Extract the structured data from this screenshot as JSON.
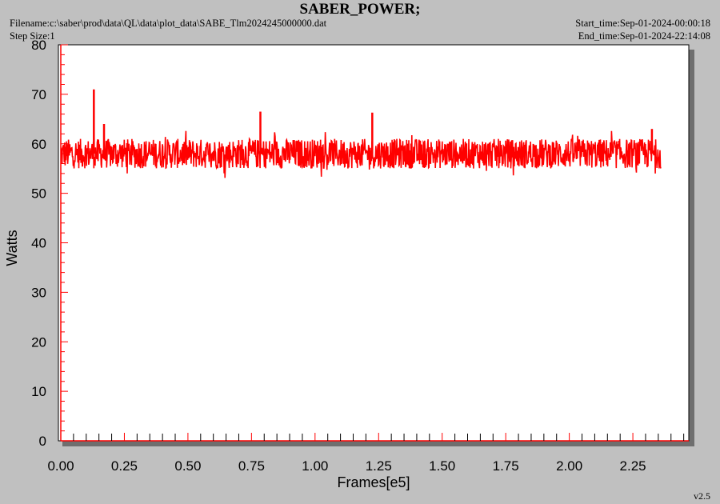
{
  "header": {
    "title": "SABER_POWER;",
    "filename": "Filename:c:\\saber\\prod\\data\\QL\\data\\plot_data\\SABE_Tlm2024245000000.dat",
    "step_size": "Step Size:1",
    "start_time": "Start_time:Sep-01-2024-00:00:18",
    "end_time": "End_time:Sep-01-2024-22:14:08"
  },
  "version": "v2.5",
  "colors": {
    "series": "#ff0000",
    "background": "#c0c0c0",
    "plot_area": "#ffffff",
    "axis_ticks": "#ff0000"
  },
  "chart_data": {
    "type": "line",
    "title": "SABER_POWER;",
    "xlabel": "Frames[e5]",
    "ylabel": "Watts",
    "xlim": [
      0.0,
      2.47
    ],
    "ylim": [
      0,
      80
    ],
    "x_ticks": [
      "0.00",
      "0.25",
      "0.50",
      "0.75",
      "1.00",
      "1.25",
      "1.50",
      "1.75",
      "2.00",
      "2.25"
    ],
    "y_ticks": [
      "0",
      "10",
      "20",
      "30",
      "40",
      "50",
      "60",
      "70",
      "80"
    ],
    "grid": false,
    "series": [
      {
        "x_range": [
          0.0,
          2.36
        ],
        "baseline": 58,
        "band_min": 55,
        "band_max": 61,
        "spikes": [
          {
            "x": 0.13,
            "y": 71
          },
          {
            "x": 0.17,
            "y": 64
          },
          {
            "x": 0.785,
            "y": 66.5
          },
          {
            "x": 1.225,
            "y": 66.3
          },
          {
            "x": 2.325,
            "y": 63
          }
        ]
      }
    ]
  }
}
